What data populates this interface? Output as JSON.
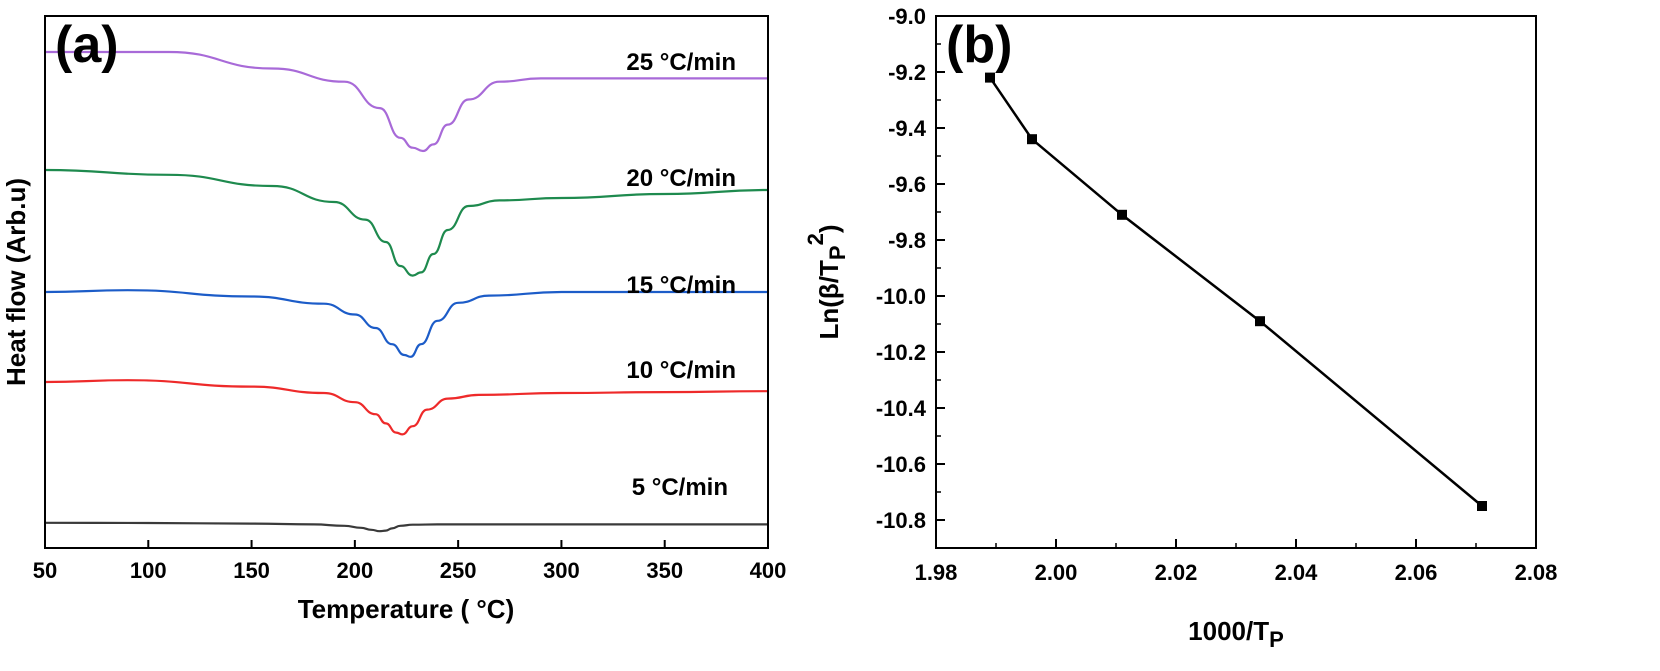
{
  "chart_data": [
    {
      "type": "line",
      "panel_label": "(a)",
      "xlabel": "Temperature ( °C)",
      "ylabel": "Heat flow (Arb.u)",
      "xlim": [
        50,
        400
      ],
      "xticks": [
        "50",
        "100",
        "150",
        "200",
        "250",
        "300",
        "350",
        "400"
      ],
      "yticks": [],
      "grid": false,
      "y_offset_note": "",
      "series": [
        {
          "name": "5 °C/min",
          "color": "#3a3a3a",
          "x": [
            50,
            100,
            150,
            180,
            195,
            203,
            208,
            212,
            215,
            218,
            222,
            228,
            240,
            270,
            320,
            400
          ],
          "y": [
            -0.92,
            -0.93,
            -0.95,
            -0.98,
            -1.03,
            -1.1,
            -1.17,
            -1.22,
            -1.2,
            -1.12,
            -1.03,
            -0.99,
            -0.98,
            -0.98,
            -0.98,
            -0.98
          ]
        },
        {
          "name": "10 °C/min",
          "color": "#ee2a2a",
          "x": [
            50,
            90,
            150,
            185,
            200,
            210,
            215,
            220,
            223,
            228,
            235,
            245,
            260,
            300,
            350,
            400
          ],
          "y": [
            0.0,
            0.02,
            -0.05,
            -0.12,
            -0.22,
            -0.35,
            -0.45,
            -0.55,
            -0.57,
            -0.48,
            -0.3,
            -0.18,
            -0.14,
            -0.12,
            -0.11,
            -0.1
          ]
        },
        {
          "name": "15 °C/min",
          "color": "#1c5cc8",
          "x": [
            50,
            90,
            150,
            185,
            200,
            210,
            218,
            224,
            227,
            232,
            240,
            250,
            265,
            300,
            350,
            400
          ],
          "y": [
            0.0,
            0.02,
            -0.05,
            -0.13,
            -0.25,
            -0.4,
            -0.58,
            -0.7,
            -0.72,
            -0.58,
            -0.32,
            -0.12,
            -0.04,
            0.0,
            0.0,
            0.0
          ]
        },
        {
          "name": "20 °C/min",
          "color": "#1e8a4e",
          "x": [
            50,
            110,
            160,
            190,
            205,
            215,
            222,
            228,
            232,
            238,
            245,
            255,
            270,
            300,
            350,
            400
          ],
          "y": [
            0.0,
            -0.06,
            -0.2,
            -0.4,
            -0.62,
            -0.9,
            -1.2,
            -1.32,
            -1.28,
            -1.05,
            -0.75,
            -0.45,
            -0.38,
            -0.35,
            -0.3,
            -0.25
          ]
        },
        {
          "name": "25 °C/min",
          "color": "#a86ad8",
          "x": [
            50,
            110,
            160,
            195,
            212,
            222,
            228,
            233,
            238,
            245,
            255,
            270,
            290,
            320,
            360,
            400
          ],
          "y": [
            0.0,
            0.0,
            -0.25,
            -0.45,
            -0.85,
            -1.3,
            -1.45,
            -1.5,
            -1.4,
            -1.1,
            -0.72,
            -0.45,
            -0.4,
            -0.4,
            -0.4,
            -0.4
          ]
        }
      ]
    },
    {
      "type": "line",
      "panel_label": "(b)",
      "xlabel": "1000/T",
      "xlabel_sub": "P",
      "ylabel_prefix": "Ln(β/T",
      "ylabel_sub": "P",
      "ylabel_sup": "2",
      "ylabel_suffix": ")",
      "xlim": [
        1.98,
        2.08
      ],
      "ylim": [
        -10.9,
        -9.0
      ],
      "xticks": [
        "1.98",
        "2.00",
        "2.02",
        "2.04",
        "2.06",
        "2.08"
      ],
      "yticks": [
        "-9.0",
        "-9.2",
        "-9.4",
        "-9.6",
        "-9.8",
        "-10.0",
        "-10.2",
        "-10.4",
        "-10.6",
        "-10.8"
      ],
      "grid": false,
      "series": [
        {
          "name": "",
          "color": "#000000",
          "marker": "square",
          "x": [
            1.989,
            1.996,
            2.011,
            2.034,
            2.071
          ],
          "y": [
            -9.22,
            -9.44,
            -9.71,
            -10.09,
            -10.75
          ]
        }
      ]
    }
  ]
}
